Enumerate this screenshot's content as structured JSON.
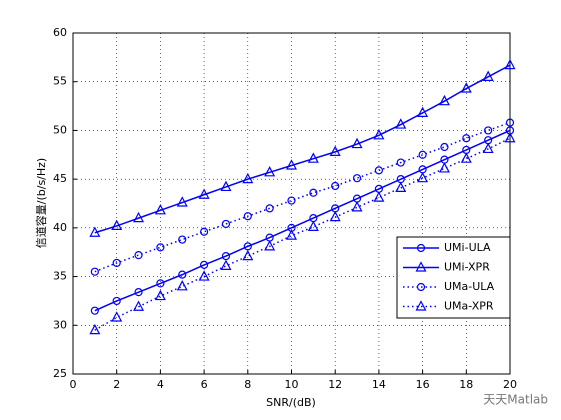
{
  "chart_data": {
    "type": "line",
    "xlabel": "SNR/(dB)",
    "ylabel": "信道容量/(b/s/Hz)",
    "x": [
      1,
      2,
      3,
      4,
      5,
      6,
      7,
      8,
      9,
      10,
      11,
      12,
      13,
      14,
      15,
      16,
      17,
      18,
      19,
      20
    ],
    "xlim": [
      0,
      20
    ],
    "xticks": [
      0,
      2,
      4,
      6,
      8,
      10,
      12,
      14,
      16,
      18,
      20
    ],
    "ylim": [
      25,
      60
    ],
    "yticks": [
      25,
      30,
      35,
      40,
      45,
      50,
      55,
      60
    ],
    "grid": true,
    "legend": "lower right",
    "watermark": "天天Matlab",
    "series": [
      {
        "name": "UMi-ULA",
        "color": "#0000ff",
        "linestyle": "solid",
        "marker": "circle",
        "values": [
          31.5,
          32.5,
          33.4,
          34.3,
          35.2,
          36.2,
          37.1,
          38.1,
          39.0,
          40.0,
          41.0,
          42.0,
          43.0,
          44.0,
          45.0,
          46.0,
          47.0,
          48.0,
          49.0,
          50.0
        ]
      },
      {
        "name": "UMi-XPR",
        "color": "#0000ff",
        "linestyle": "solid",
        "marker": "triangle",
        "values": [
          39.5,
          40.2,
          41.0,
          41.8,
          42.6,
          43.4,
          44.2,
          45.0,
          45.7,
          46.4,
          47.1,
          47.8,
          48.6,
          49.5,
          50.6,
          51.8,
          53.0,
          54.3,
          55.5,
          56.7
        ]
      },
      {
        "name": "UMa-ULA",
        "color": "#0000ff",
        "linestyle": "dotted",
        "marker": "circle",
        "values": [
          35.5,
          36.4,
          37.2,
          38.0,
          38.8,
          39.6,
          40.4,
          41.2,
          42.0,
          42.8,
          43.6,
          44.3,
          45.1,
          45.9,
          46.7,
          47.5,
          48.3,
          49.2,
          50.0,
          50.8
        ]
      },
      {
        "name": "UMa-XPR",
        "color": "#0000ff",
        "linestyle": "dotted",
        "marker": "triangle",
        "values": [
          29.5,
          30.8,
          31.9,
          33.0,
          34.0,
          35.0,
          36.1,
          37.1,
          38.1,
          39.2,
          40.1,
          41.1,
          42.1,
          43.1,
          44.1,
          45.1,
          46.1,
          47.1,
          48.1,
          49.2
        ]
      }
    ]
  }
}
